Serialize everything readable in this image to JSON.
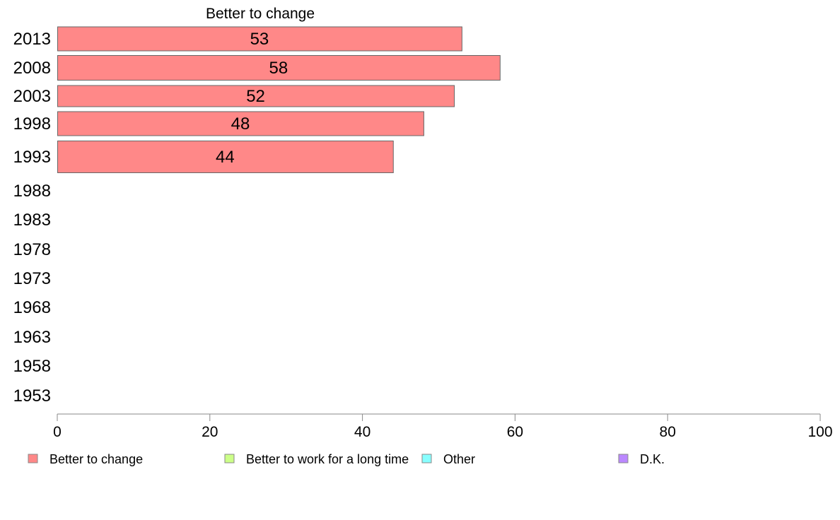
{
  "chart_data": {
    "type": "bar",
    "orientation": "horizontal",
    "title": "Better to change",
    "categories": [
      "2013",
      "2008",
      "2003",
      "1998",
      "1993",
      "1988",
      "1983",
      "1978",
      "1973",
      "1968",
      "1963",
      "1958",
      "1953"
    ],
    "series": [
      {
        "name": "Better to change",
        "color": "#ff8888",
        "values": [
          53,
          58,
          52,
          48,
          44,
          null,
          null,
          null,
          null,
          null,
          null,
          null,
          null
        ]
      }
    ],
    "xlim": [
      0,
      100
    ],
    "xticks": [
      0,
      20,
      40,
      60,
      80,
      100
    ],
    "legend": {
      "position": "bottom",
      "items": [
        {
          "label": "Better to change",
          "color": "#ff8888"
        },
        {
          "label": "Better to work for a long time",
          "color": "#ccff88"
        },
        {
          "label": "Other",
          "color": "#88ffff"
        },
        {
          "label": "D.K.",
          "color": "#bb88ff"
        }
      ]
    }
  }
}
